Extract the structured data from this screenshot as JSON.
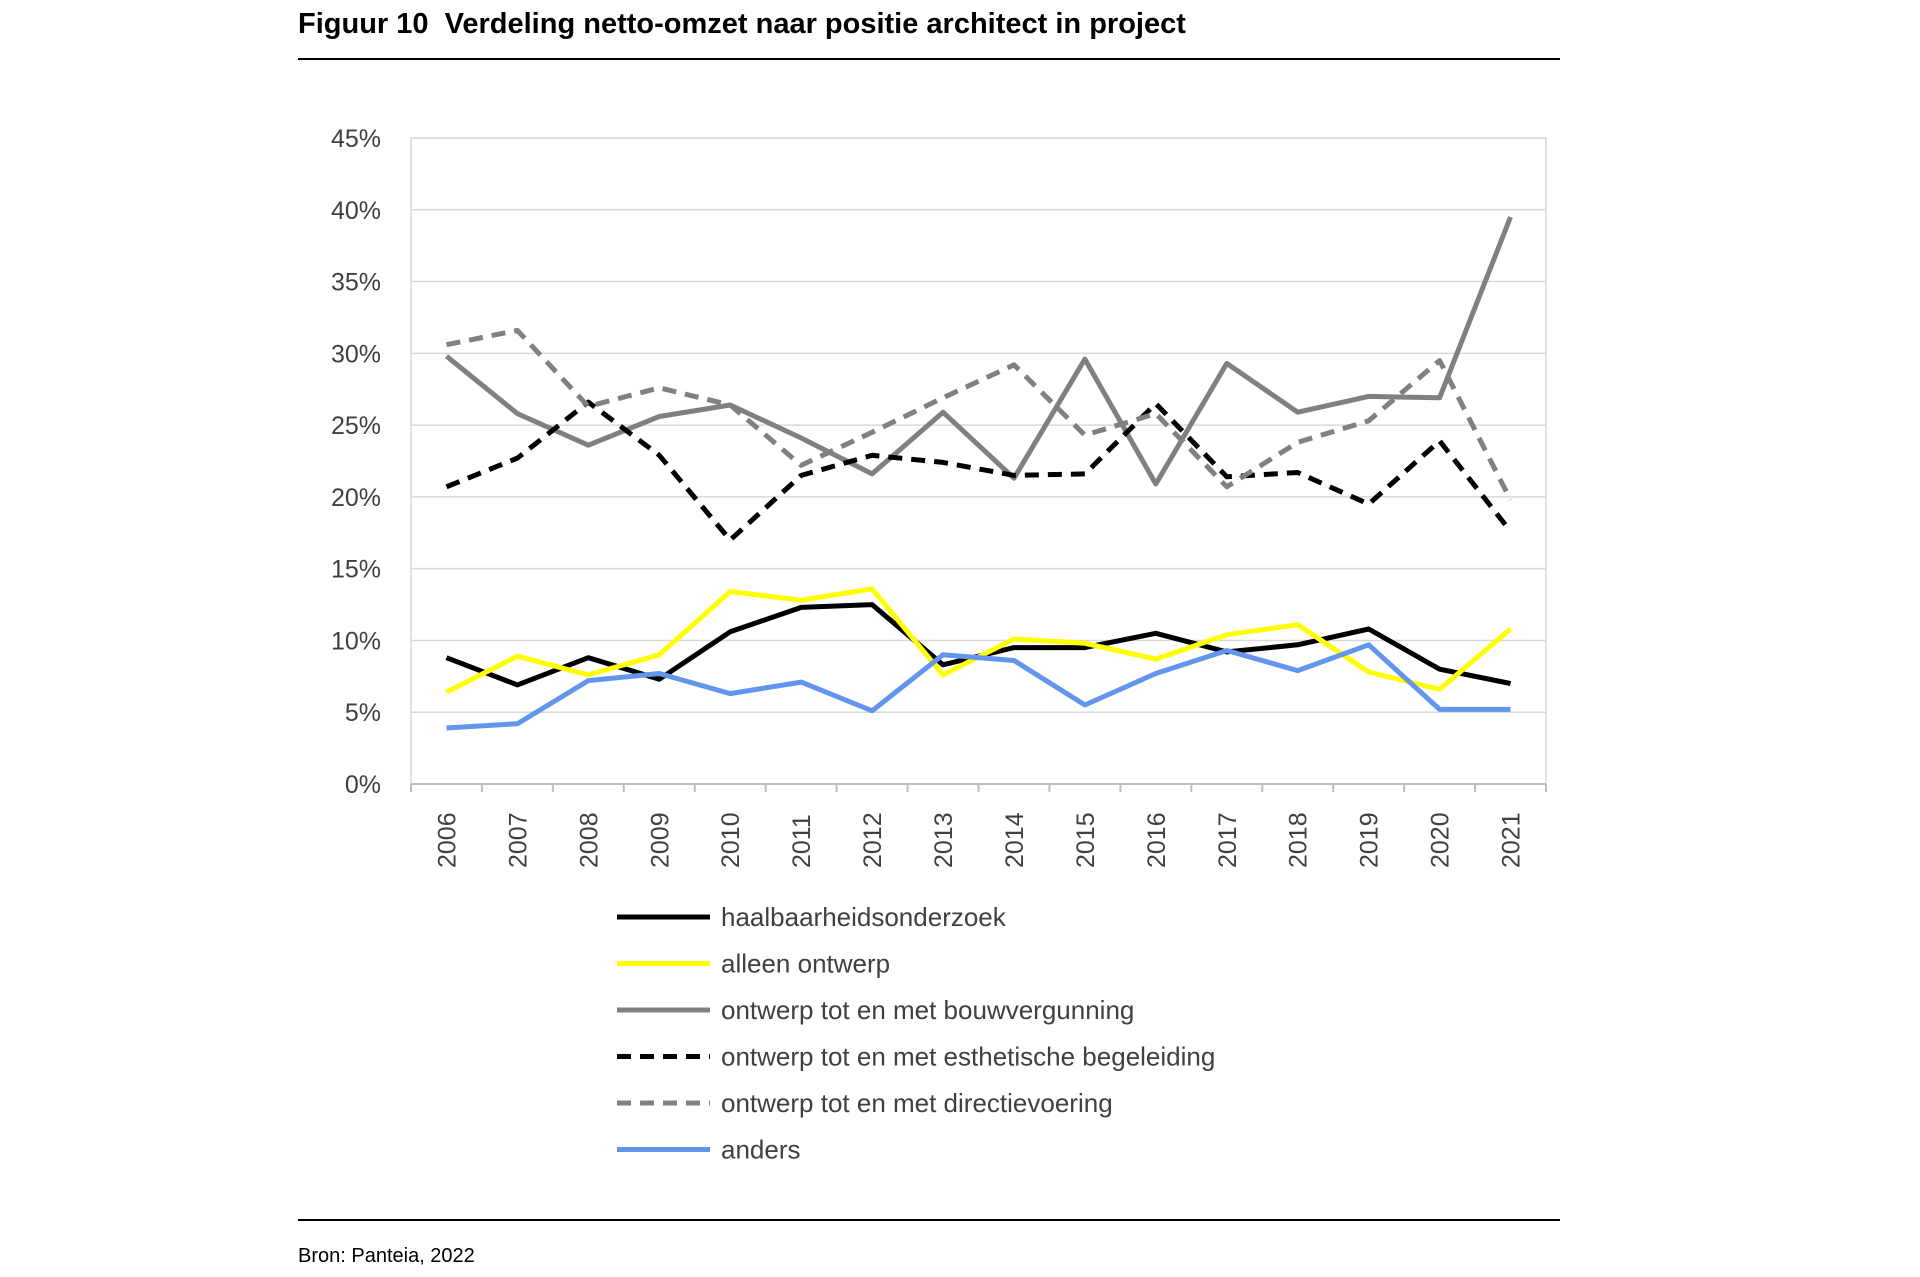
{
  "figure": {
    "title": "Figuur 10  Verdeling netto-omzet naar positie architect in project",
    "source": "Bron: Panteia, 2022"
  },
  "chart_data": {
    "type": "line",
    "title": "",
    "xlabel": "",
    "ylabel": "",
    "ylim": [
      0,
      45
    ],
    "yticks": [
      "0%",
      "5%",
      "10%",
      "15%",
      "20%",
      "25%",
      "30%",
      "35%",
      "40%",
      "45%"
    ],
    "categories": [
      "2006",
      "2007",
      "2008",
      "2009",
      "2010",
      "2011",
      "2012",
      "2013",
      "2014",
      "2015",
      "2016",
      "2017",
      "2018",
      "2019",
      "2020",
      "2021"
    ],
    "grid": true,
    "legend_position": "bottom",
    "series": [
      {
        "name": "haalbaarheidsonderzoek",
        "color": "#000000",
        "dash": "solid",
        "values": [
          8.8,
          6.9,
          8.8,
          7.3,
          10.6,
          12.3,
          12.5,
          8.3,
          9.5,
          9.5,
          10.5,
          9.2,
          9.7,
          10.8,
          8.0,
          7.0
        ]
      },
      {
        "name": "alleen ontwerp",
        "color": "#ffff00",
        "dash": "solid",
        "values": [
          6.4,
          8.9,
          7.6,
          9.0,
          13.4,
          12.8,
          13.6,
          7.6,
          10.1,
          9.8,
          8.7,
          10.4,
          11.1,
          7.8,
          6.6,
          10.8
        ]
      },
      {
        "name": "ontwerp tot en met bouwvergunning",
        "color": "#808080",
        "dash": "solid",
        "values": [
          29.8,
          25.8,
          23.6,
          25.6,
          26.4,
          24.1,
          21.6,
          25.9,
          21.3,
          29.6,
          20.9,
          29.3,
          25.9,
          27.0,
          26.9,
          39.5
        ]
      },
      {
        "name": "ontwerp tot en met esthetische begeleiding",
        "color": "#000000",
        "dash": "dash",
        "values": [
          20.7,
          22.7,
          26.6,
          22.9,
          17.0,
          21.5,
          22.9,
          22.4,
          21.5,
          21.6,
          26.5,
          21.4,
          21.7,
          19.5,
          23.9,
          17.6
        ]
      },
      {
        "name": "ontwerp tot en met directievoering",
        "color": "#808080",
        "dash": "dash",
        "values": [
          30.6,
          31.6,
          26.3,
          27.6,
          26.4,
          22.2,
          24.5,
          26.9,
          29.2,
          24.3,
          25.8,
          20.7,
          23.8,
          25.3,
          29.5,
          19.8
        ]
      },
      {
        "name": "anders",
        "color": "#6495ed",
        "dash": "solid",
        "values": [
          3.9,
          4.2,
          7.2,
          7.7,
          6.3,
          7.1,
          5.1,
          9.0,
          8.6,
          5.5,
          7.7,
          9.3,
          7.9,
          9.7,
          5.2,
          5.2
        ]
      }
    ]
  }
}
